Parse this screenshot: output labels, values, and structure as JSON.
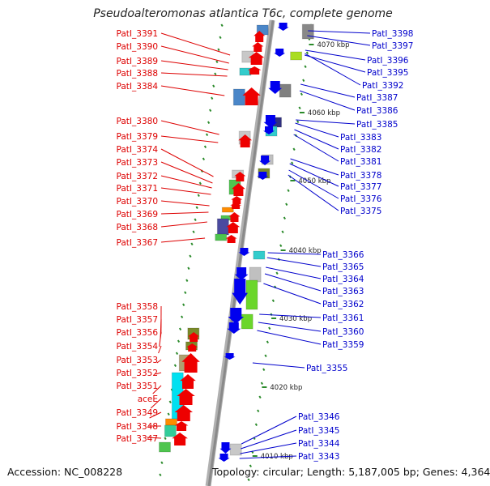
{
  "title": "Pseudoalteromonas atlantica T6c, complete genome",
  "footer": {
    "accession": "Accession: NC_008228",
    "topology": "Topology: circular; Length: 5,187,005 bp; Genes: 4,364"
  },
  "colors": {
    "reverse_label": "#dd0000",
    "forward_label": "#0000cc",
    "backbone": "#999999",
    "tick": "#2a8a2a"
  },
  "scale_labels": [
    "4070 kbp",
    "4060 kbp",
    "4050 kbp",
    "4040 kbp",
    "4030 kbp",
    "4020 kbp",
    "4010 kbp"
  ],
  "reverse_genes": [
    "PatI_3391",
    "PatI_3390",
    "PatI_3389",
    "PatI_3388",
    "PatI_3384",
    "PatI_3380",
    "PatI_3379",
    "PatI_3374",
    "PatI_3373",
    "PatI_3372",
    "PatI_3371",
    "PatI_3370",
    "PatI_3369",
    "PatI_3368",
    "PatI_3367",
    "PatI_3358",
    "PatI_3357",
    "PatI_3356",
    "PatI_3354",
    "PatI_3353",
    "PatI_3352",
    "PatI_3351",
    "aceE",
    "PatI_3349",
    "PatI_3348",
    "PatI_3347"
  ],
  "forward_genes": [
    "PatI_3398",
    "PatI_3397",
    "PatI_3396",
    "PatI_3395",
    "PatI_3392",
    "PatI_3387",
    "PatI_3386",
    "PatI_3385",
    "PatI_3383",
    "PatI_3382",
    "PatI_3381",
    "PatI_3378",
    "PatI_3377",
    "PatI_3376",
    "PatI_3375",
    "PatI_3366",
    "PatI_3365",
    "PatI_3364",
    "PatI_3363",
    "PatI_3362",
    "PatI_3361",
    "PatI_3360",
    "PatI_3359",
    "PatI_3355",
    "PatI_3346",
    "PatI_3345",
    "PatI_3344",
    "PatI_3343"
  ]
}
